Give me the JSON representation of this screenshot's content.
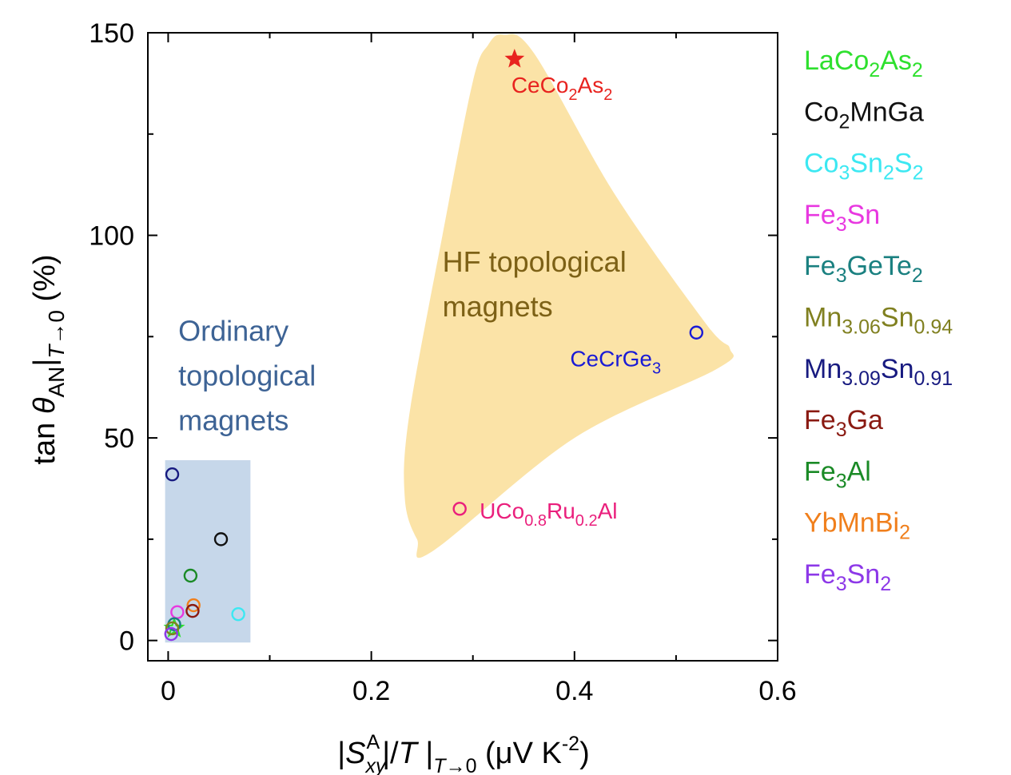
{
  "chart_data": {
    "type": "scatter",
    "xlabel": "|S_xy^A|/T |_{T→0} (μV K^-2)",
    "ylabel": "tan θ_AN|_{T→0} (%)",
    "xlim": [
      -0.02,
      0.6
    ],
    "ylim": [
      -5,
      150
    ],
    "xticks": [
      0,
      0.2,
      0.4,
      0.6
    ],
    "xtick_labels": [
      "0",
      "0.2",
      "0.4",
      "0.6"
    ],
    "yticks": [
      0,
      50,
      100,
      150
    ],
    "ytick_labels": [
      "0",
      "50",
      "100",
      "150"
    ],
    "regions": [
      {
        "name": "Ordinary topological magnets",
        "lines": [
          "Ordinary",
          "topological",
          "magnets"
        ],
        "color": "#c6d7ea",
        "text_color": "#3d6395",
        "x_range": [
          -0.003,
          0.081
        ],
        "y_range": [
          -0.5,
          44.5
        ]
      },
      {
        "name": "HF topological magnets",
        "lines": [
          "HF topological",
          "magnets"
        ],
        "color": "#fbe3a7",
        "text_color": "#7d6116",
        "outline": [
          [
            0.33,
            149.5
          ],
          [
            0.36,
            145
          ],
          [
            0.44,
            110
          ],
          [
            0.53,
            78
          ],
          [
            0.553,
            72
          ],
          [
            0.54,
            67
          ],
          [
            0.4,
            50
          ],
          [
            0.26,
            22
          ],
          [
            0.245,
            25
          ],
          [
            0.233,
            35
          ],
          [
            0.237,
            55
          ],
          [
            0.27,
            100
          ],
          [
            0.3,
            138
          ],
          [
            0.315,
            147
          ]
        ]
      }
    ],
    "points": [
      {
        "label": "CeCo2As2",
        "x": 0.341,
        "y": 143.5,
        "marker": "star",
        "color": "#e8231f"
      },
      {
        "label": "CeCrGe3",
        "x": 0.52,
        "y": 76,
        "marker": "circle",
        "color": "#1a1ad6"
      },
      {
        "label": "UCo0.8Ru0.2Al",
        "x": 0.287,
        "y": 32.5,
        "marker": "circle",
        "color": "#ea1f7c"
      },
      {
        "label": "Mn3.09Sn0.91",
        "x": 0.004,
        "y": 41,
        "marker": "circle",
        "color": "#171a80"
      },
      {
        "label": "Co2MnGa",
        "x": 0.052,
        "y": 25,
        "marker": "circle",
        "color": "#111111"
      },
      {
        "label": "Fe3Al",
        "x": 0.022,
        "y": 16,
        "marker": "circle",
        "color": "#1a8a26"
      },
      {
        "label": "YbMnBi2",
        "x": 0.025,
        "y": 8.7,
        "marker": "circle",
        "color": "#f07f1c"
      },
      {
        "label": "Fe3Ga",
        "x": 0.024,
        "y": 7.3,
        "marker": "circle",
        "color": "#8a1a12"
      },
      {
        "label": "Co3Sn2S2",
        "x": 0.069,
        "y": 6.5,
        "marker": "circle",
        "color": "#3ce8f2"
      },
      {
        "label": "Fe3Sn",
        "x": 0.009,
        "y": 7,
        "marker": "circle",
        "color": "#e838e0"
      },
      {
        "label": "LaCo2As2",
        "x": 0.006,
        "y": 3,
        "marker": "star-open",
        "color": "#2ee02e"
      },
      {
        "label": "Fe3GeTe2",
        "x": 0.006,
        "y": 4,
        "marker": "circle",
        "color": "#1a8080"
      },
      {
        "label": "Mn3.06Sn0.94",
        "x": 0.004,
        "y": 3,
        "marker": "circle",
        "color": "#808020"
      },
      {
        "label": "Fe3Sn2",
        "x": 0.003,
        "y": 1.6,
        "marker": "circle",
        "color": "#8d38e8"
      }
    ],
    "annotations": [
      {
        "text": "CeCo2As2",
        "parts": [
          [
            "CeCo",
            "n"
          ],
          [
            "2",
            "sub"
          ],
          [
            "As",
            "n"
          ],
          [
            "2",
            "sub"
          ]
        ],
        "color": "#e8231f",
        "at_x": 0.341,
        "at_y": 143.5
      },
      {
        "text": "CeCrGe3",
        "parts": [
          [
            "CeCrGe",
            "n"
          ],
          [
            "3",
            "sub"
          ]
        ],
        "color": "#1a1ad6",
        "at_x": 0.52,
        "at_y": 76
      },
      {
        "text": "UCo0.8Ru0.2Al",
        "parts": [
          [
            "UCo",
            "n"
          ],
          [
            "0.8",
            "sub"
          ],
          [
            "Ru",
            "n"
          ],
          [
            "0.2",
            "sub"
          ],
          [
            "Al",
            "n"
          ]
        ],
        "color": "#ea1f7c",
        "at_x": 0.287,
        "at_y": 32.5
      }
    ],
    "legend": {
      "placement": "right, outside plot",
      "entries": [
        {
          "text": "LaCo2As2",
          "color": "#2ee02e",
          "parts": [
            [
              "LaCo",
              "n"
            ],
            [
              "2",
              "sub"
            ],
            [
              "As",
              "n"
            ],
            [
              "2",
              "sub"
            ]
          ]
        },
        {
          "text": "Co2MnGa",
          "color": "#111111",
          "parts": [
            [
              "Co",
              "n"
            ],
            [
              "2",
              "sub"
            ],
            [
              "MnGa",
              "n"
            ]
          ]
        },
        {
          "text": "Co3Sn2S2",
          "color": "#3ce8f2",
          "parts": [
            [
              "Co",
              "n"
            ],
            [
              "3",
              "sub"
            ],
            [
              "Sn",
              "n"
            ],
            [
              "2",
              "sub"
            ],
            [
              "S",
              "n"
            ],
            [
              "2",
              "sub"
            ]
          ]
        },
        {
          "text": "Fe3Sn",
          "color": "#e838e0",
          "parts": [
            [
              "Fe",
              "n"
            ],
            [
              "3",
              "sub"
            ],
            [
              "Sn",
              "n"
            ]
          ]
        },
        {
          "text": "Fe3GeTe2",
          "color": "#1a8080",
          "parts": [
            [
              "Fe",
              "n"
            ],
            [
              "3",
              "sub"
            ],
            [
              "GeTe",
              "n"
            ],
            [
              "2",
              "sub"
            ]
          ]
        },
        {
          "text": "Mn3.06Sn0.94",
          "color": "#808020",
          "parts": [
            [
              "Mn",
              "n"
            ],
            [
              "3.06",
              "sub"
            ],
            [
              "Sn",
              "n"
            ],
            [
              "0.94",
              "sub"
            ]
          ]
        },
        {
          "text": "Mn3.09Sn0.91",
          "color": "#171a80",
          "parts": [
            [
              "Mn",
              "n"
            ],
            [
              "3.09",
              "sub"
            ],
            [
              "Sn",
              "n"
            ],
            [
              "0.91",
              "sub"
            ]
          ]
        },
        {
          "text": "Fe3Ga",
          "color": "#8a1a12",
          "parts": [
            [
              "Fe",
              "n"
            ],
            [
              "3",
              "sub"
            ],
            [
              "Ga",
              "n"
            ]
          ]
        },
        {
          "text": "Fe3Al",
          "color": "#1a8a26",
          "parts": [
            [
              "Fe",
              "n"
            ],
            [
              "3",
              "sub"
            ],
            [
              "Al",
              "n"
            ]
          ]
        },
        {
          "text": "YbMnBi2",
          "color": "#f07f1c",
          "parts": [
            [
              "YbMnBi",
              "n"
            ],
            [
              "2",
              "sub"
            ]
          ]
        },
        {
          "text": "Fe3Sn2",
          "color": "#8d38e8",
          "parts": [
            [
              "Fe",
              "n"
            ],
            [
              "3",
              "sub"
            ],
            [
              "Sn",
              "n"
            ],
            [
              "2",
              "sub"
            ]
          ]
        }
      ]
    }
  }
}
